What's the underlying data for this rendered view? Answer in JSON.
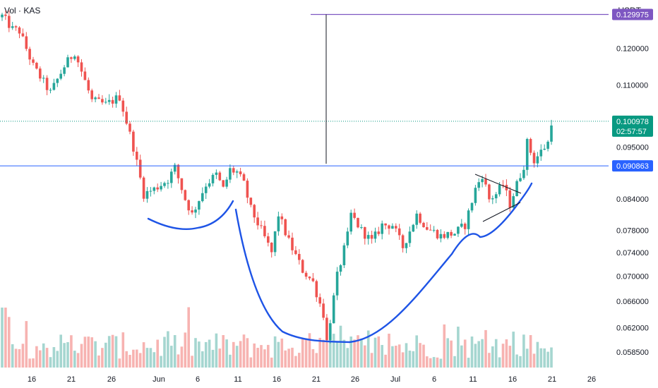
{
  "header": {
    "symbol_label": "Vol · KAS",
    "currency": "USDT"
  },
  "colors": {
    "up": "#26a69a",
    "down": "#ef5350",
    "volume_up": "#a5d6d0",
    "volume_down": "#f7b3b1",
    "resistance_line": "#2962ff",
    "target_line": "#7e57c2",
    "last_price_tag": "#089981",
    "resistance_tag": "#2962ff",
    "target_tag": "#7e57c2",
    "annotation_curve": "#1e54e6",
    "grid": "#f0f3fa"
  },
  "chart_data": {
    "type": "candlestick",
    "symbol": "KAS",
    "quote": "USDT",
    "y_scale": "log",
    "ylim": [
      0.0565,
      0.1345
    ],
    "x_ticks": [
      "16",
      "21",
      "26",
      "Jun",
      "6",
      "11",
      "16",
      "21",
      "26",
      "Jul",
      "6",
      "11",
      "16",
      "21",
      "26"
    ],
    "y_ticks": [
      "0.120000",
      "0.110000",
      "0.095000",
      "0.084000",
      "0.078000",
      "0.074000",
      "0.070000",
      "0.066000",
      "0.062000",
      "0.058500"
    ],
    "y_tick_values": [
      0.12,
      0.11,
      0.095,
      0.084,
      0.078,
      0.074,
      0.07,
      0.066,
      0.062,
      0.0585
    ],
    "grid": false,
    "price_anchors": [
      {
        "t": 0,
        "p": 0.1295
      },
      {
        "t": 3,
        "p": 0.1255
      },
      {
        "t": 5,
        "p": 0.125
      },
      {
        "t": 9,
        "p": 0.115
      },
      {
        "t": 14,
        "p": 0.108
      },
      {
        "t": 18,
        "p": 0.115
      },
      {
        "t": 21,
        "p": 0.119
      },
      {
        "t": 26,
        "p": 0.106
      },
      {
        "t": 30,
        "p": 0.105
      },
      {
        "t": 34,
        "p": 0.107
      },
      {
        "t": 38,
        "p": 0.095
      },
      {
        "t": 41,
        "p": 0.085
      },
      {
        "t": 44,
        "p": 0.086
      },
      {
        "t": 48,
        "p": 0.088
      },
      {
        "t": 50,
        "p": 0.0905
      },
      {
        "t": 53,
        "p": 0.084
      },
      {
        "t": 55,
        "p": 0.081
      },
      {
        "t": 59,
        "p": 0.087
      },
      {
        "t": 62,
        "p": 0.089
      },
      {
        "t": 64,
        "p": 0.086
      },
      {
        "t": 66,
        "p": 0.09
      },
      {
        "t": 68,
        "p": 0.0895
      },
      {
        "t": 70,
        "p": 0.087
      },
      {
        "t": 72,
        "p": 0.082
      },
      {
        "t": 75,
        "p": 0.078
      },
      {
        "t": 78,
        "p": 0.074
      },
      {
        "t": 80,
        "p": 0.081
      },
      {
        "t": 83,
        "p": 0.076
      },
      {
        "t": 87,
        "p": 0.071
      },
      {
        "t": 90,
        "p": 0.069
      },
      {
        "t": 93,
        "p": 0.064
      },
      {
        "t": 94,
        "p": 0.06
      },
      {
        "t": 97,
        "p": 0.07
      },
      {
        "t": 100,
        "p": 0.077
      },
      {
        "t": 101,
        "p": 0.081
      },
      {
        "t": 104,
        "p": 0.078
      },
      {
        "t": 107,
        "p": 0.076
      },
      {
        "t": 110,
        "p": 0.079
      },
      {
        "t": 113,
        "p": 0.079
      },
      {
        "t": 116,
        "p": 0.075
      },
      {
        "t": 120,
        "p": 0.081
      },
      {
        "t": 123,
        "p": 0.0785
      },
      {
        "t": 127,
        "p": 0.077
      },
      {
        "t": 131,
        "p": 0.0775
      },
      {
        "t": 134,
        "p": 0.079
      },
      {
        "t": 137,
        "p": 0.086
      },
      {
        "t": 139,
        "p": 0.089
      },
      {
        "t": 141,
        "p": 0.084
      },
      {
        "t": 143,
        "p": 0.085
      },
      {
        "t": 145,
        "p": 0.087
      },
      {
        "t": 147,
        "p": 0.083
      },
      {
        "t": 149,
        "p": 0.087
      },
      {
        "t": 151,
        "p": 0.091
      },
      {
        "t": 152,
        "p": 0.096
      },
      {
        "t": 154,
        "p": 0.092
      },
      {
        "t": 156,
        "p": 0.094
      },
      {
        "t": 158,
        "p": 0.096
      },
      {
        "t": 159,
        "p": 0.101
      }
    ],
    "last_price": {
      "value": "0.100978",
      "countdown": "02:57:57",
      "p": 0.100978
    },
    "resistance_level": {
      "value": "0.090863",
      "p": 0.090863
    },
    "target_level": {
      "value": "0.129975",
      "p": 0.129975
    }
  }
}
